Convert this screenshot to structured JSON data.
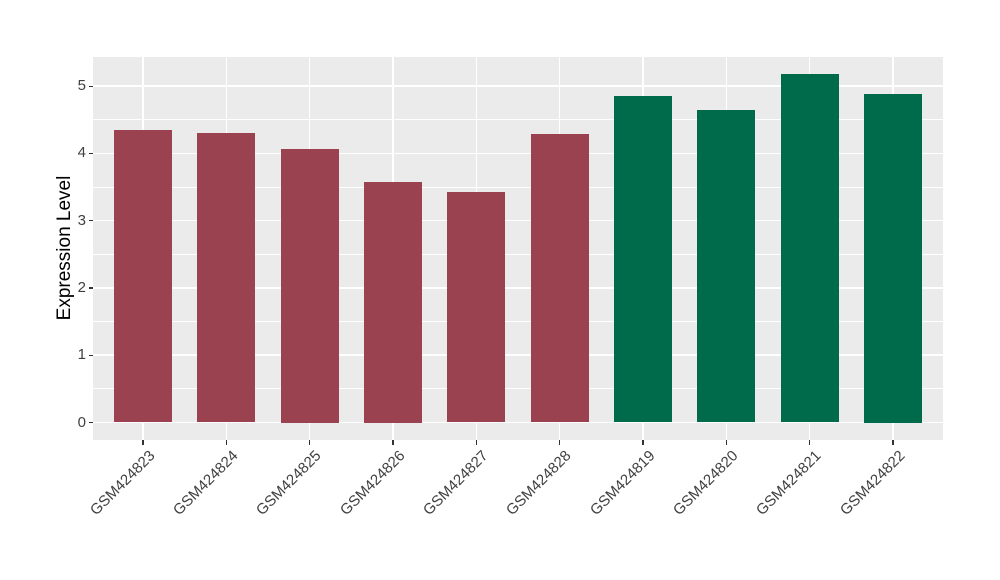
{
  "chart_data": {
    "type": "bar",
    "title": "",
    "xlabel": "",
    "ylabel": "Expression Level",
    "categories": [
      "GSM424823",
      "GSM424824",
      "GSM424825",
      "GSM424826",
      "GSM424827",
      "GSM424828",
      "GSM424819",
      "GSM424820",
      "GSM424821",
      "GSM424822"
    ],
    "values": [
      4.35,
      4.3,
      4.06,
      3.57,
      3.43,
      4.29,
      4.85,
      4.65,
      5.18,
      4.88
    ],
    "bar_colors": [
      "#9A4250",
      "#9A4250",
      "#9A4250",
      "#9A4250",
      "#9A4250",
      "#9A4250",
      "#006B4A",
      "#006B4A",
      "#006B4A",
      "#006B4A"
    ],
    "group_colors": {
      "group1": "#9A4250",
      "group2": "#006B4A"
    },
    "ylim": [
      -0.26,
      5.44
    ],
    "y_major_breaks": [
      0,
      1,
      2,
      3,
      4,
      5
    ],
    "y_minor_breaks": [
      0.5,
      1.5,
      2.5,
      3.5,
      4.5
    ],
    "y_tick_labels": [
      "0",
      "1",
      "2",
      "3",
      "4",
      "5"
    ],
    "grid": true,
    "legend": "none",
    "x_label_angle": 45,
    "styles": {
      "panel_bg": "#EBEBEB",
      "grid_color": "#FFFFFF",
      "tick_mark_color": "#333333",
      "tick_label_color": "#404040",
      "axis_title_color": "#000000",
      "figure_bg": "#FFFFFF"
    }
  }
}
